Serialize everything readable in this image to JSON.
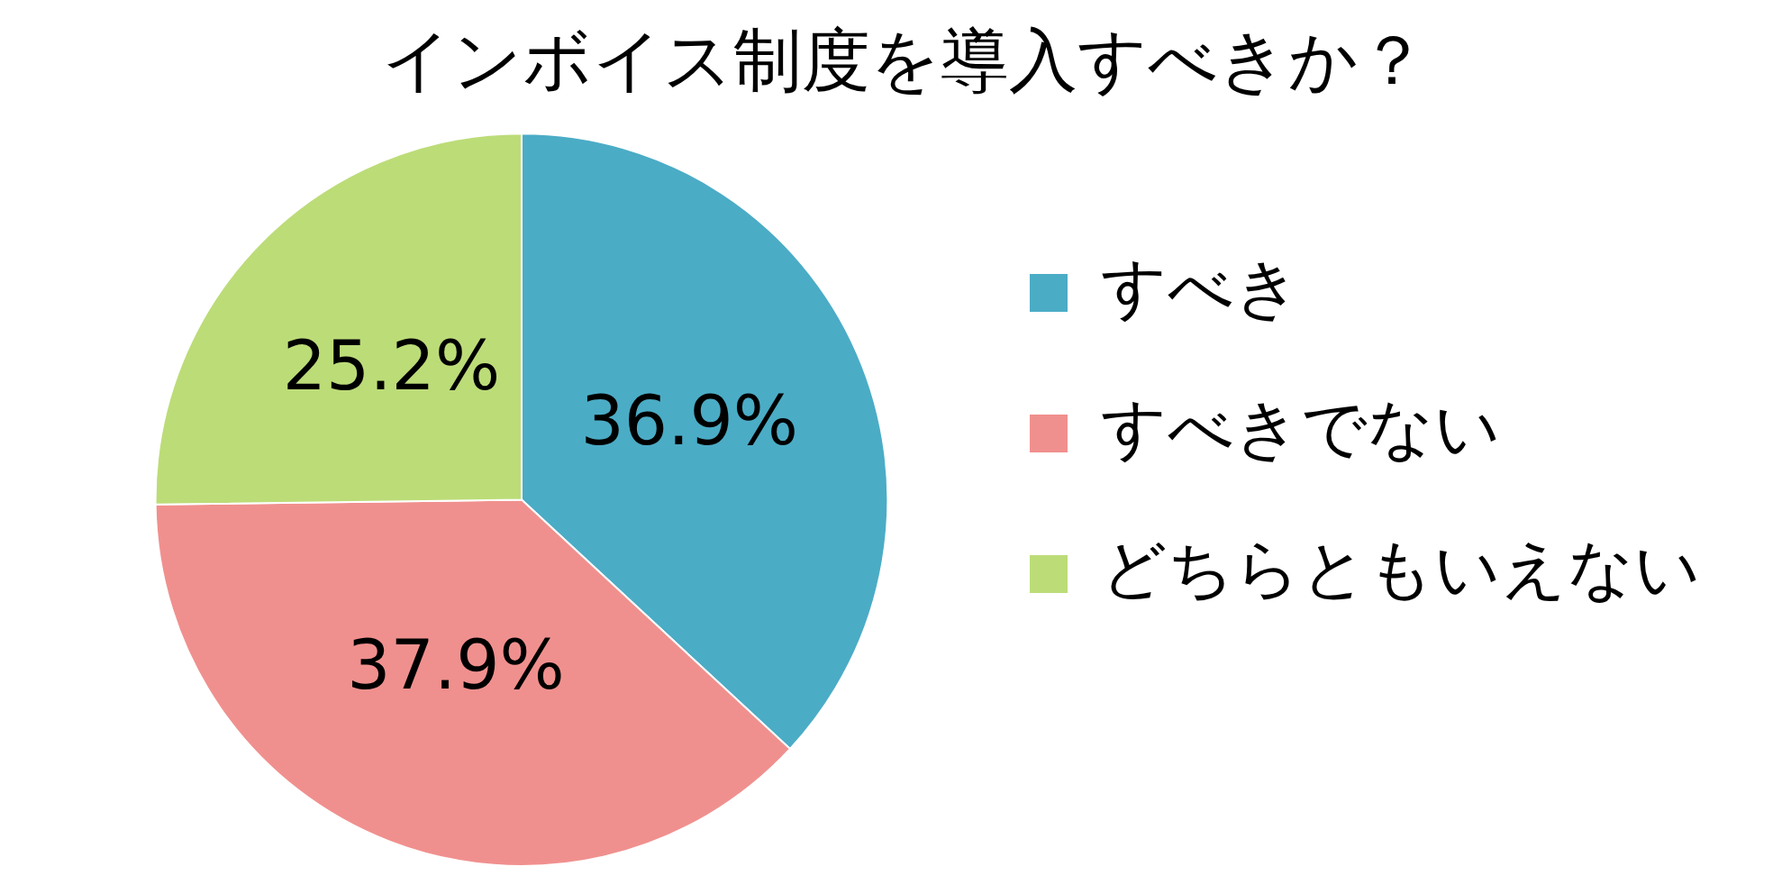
{
  "chart_data": {
    "type": "pie",
    "title": "インボイス制度を導入すべきか？",
    "categories": [
      "すべき",
      "すべきでない",
      "どちらともいえない"
    ],
    "values": [
      36.9,
      37.9,
      25.2
    ],
    "colors": [
      "#4bacc6",
      "#f0908e",
      "#bcdc78"
    ],
    "value_labels": [
      "36.9%",
      "37.9%",
      "25.2%"
    ],
    "legend": "right"
  }
}
